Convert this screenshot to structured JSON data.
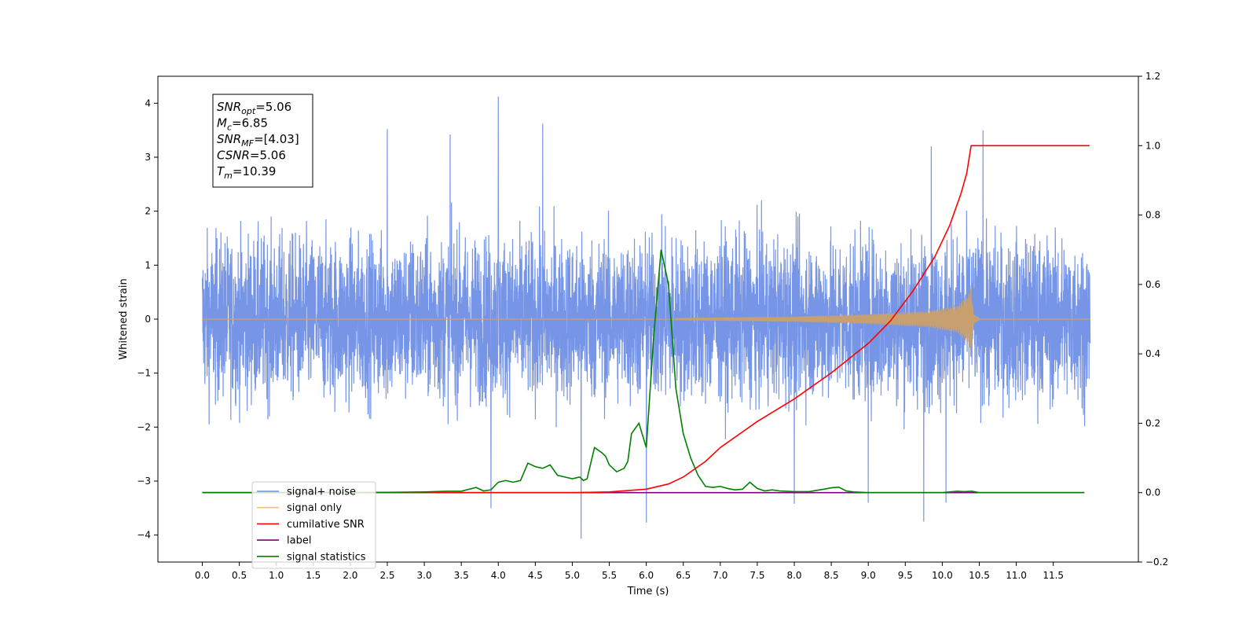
{
  "chart_data": {
    "type": "line",
    "xlabel": "Time (s)",
    "ylabel": "Whitened strain",
    "xlim": [
      -0.6,
      12.65
    ],
    "ylim": [
      -4.5,
      4.5
    ],
    "y2lim": [
      -0.2,
      1.2
    ],
    "x_ticks": [
      "0.0",
      "0.5",
      "1.0",
      "1.5",
      "2.0",
      "2.5",
      "3.0",
      "3.5",
      "4.0",
      "4.5",
      "5.0",
      "5.5",
      "6.0",
      "6.5",
      "7.0",
      "7.5",
      "8.0",
      "8.5",
      "9.0",
      "9.5",
      "10.0",
      "10.5",
      "11.0",
      "11.5"
    ],
    "y_ticks": [
      "4",
      "3",
      "2",
      "1",
      "0",
      "−1",
      "−2",
      "−3",
      "−4"
    ],
    "y2_ticks": [
      "1.2",
      "1.0",
      "0.8",
      "0.6",
      "0.4",
      "0.2",
      "0.0",
      "−0.2"
    ],
    "grid": false,
    "legend_position": "lower-left",
    "annotation": {
      "lines": [
        {
          "var": "SNR",
          "sub": "opt",
          "value": "=5.06"
        },
        {
          "var": "M",
          "sub": "c",
          "value": "=6.85"
        },
        {
          "var": "SNR",
          "sub": "MF",
          "value": "=[4.03]"
        },
        {
          "var": "CSNR",
          "sub": "",
          "value": "=5.06"
        },
        {
          "var": "T",
          "sub": "m",
          "value": "=10.39"
        }
      ]
    },
    "legend": [
      {
        "label": "signal+ noise",
        "color": "#6f8fe6"
      },
      {
        "label": "signal only",
        "color": "#ffc15a"
      },
      {
        "label": "cumilative SNR",
        "color": "#ff0000"
      },
      {
        "label": "label",
        "color": "#800080"
      },
      {
        "label": "signal statistics",
        "color": "#008000"
      }
    ],
    "series": [
      {
        "name": "signal+ noise",
        "axis": "left",
        "color": "#6f8fe6",
        "x_range": [
          0.0,
          12.0
        ],
        "typical_range": [
          -2.2,
          2.2
        ],
        "peaks": [
          {
            "x": 4.0,
            "y": 4.12
          },
          {
            "x": 2.5,
            "y": 3.52
          },
          {
            "x": 3.35,
            "y": 3.42
          },
          {
            "x": 4.6,
            "y": 3.62
          },
          {
            "x": 10.55,
            "y": 3.5
          },
          {
            "x": 9.85,
            "y": 3.2
          },
          {
            "x": 5.12,
            "y": -4.07
          },
          {
            "x": 6.0,
            "y": -3.77
          },
          {
            "x": 9.75,
            "y": -3.75
          },
          {
            "x": 3.9,
            "y": -3.5
          },
          {
            "x": 9.0,
            "y": -3.4
          },
          {
            "x": 10.05,
            "y": -3.4
          },
          {
            "x": 8.0,
            "y": -3.42
          }
        ]
      },
      {
        "name": "signal only",
        "axis": "left",
        "color": "#ffc15a",
        "x_range": [
          0.0,
          12.0
        ],
        "chirp_start": 6.4,
        "merger_time": 10.39,
        "envelope": [
          [
            6.4,
            0.02
          ],
          [
            8.0,
            0.05
          ],
          [
            9.0,
            0.09
          ],
          [
            9.8,
            0.15
          ],
          [
            10.2,
            0.25
          ],
          [
            10.35,
            0.45
          ],
          [
            10.39,
            0.65
          ],
          [
            10.42,
            0.1
          ],
          [
            10.5,
            0.02
          ]
        ]
      },
      {
        "name": "cumilative SNR",
        "axis": "right",
        "color": "#ff0000",
        "x": [
          0.0,
          5.0,
          5.5,
          6.0,
          6.3,
          6.5,
          6.8,
          7.0,
          7.5,
          8.0,
          8.5,
          9.0,
          9.3,
          9.6,
          9.9,
          10.1,
          10.25,
          10.33,
          10.39,
          10.5,
          11.0,
          11.5,
          11.99
        ],
        "values": [
          0.0,
          0.0,
          0.002,
          0.01,
          0.025,
          0.045,
          0.09,
          0.13,
          0.205,
          0.27,
          0.345,
          0.43,
          0.495,
          0.58,
          0.68,
          0.77,
          0.86,
          0.92,
          1.0,
          1.0,
          1.0,
          1.0,
          1.0
        ]
      },
      {
        "name": "label",
        "axis": "right",
        "color": "#800080",
        "x": [
          0.0,
          11.92
        ],
        "values": [
          0.0,
          0.0
        ]
      },
      {
        "name": "signal statistics",
        "axis": "right",
        "color": "#008000",
        "x": [
          0.0,
          2.0,
          3.0,
          3.3,
          3.5,
          3.7,
          3.8,
          3.9,
          4.0,
          4.1,
          4.2,
          4.3,
          4.4,
          4.5,
          4.6,
          4.7,
          4.8,
          4.9,
          5.0,
          5.1,
          5.15,
          5.2,
          5.3,
          5.4,
          5.45,
          5.5,
          5.6,
          5.7,
          5.75,
          5.8,
          5.9,
          6.0,
          6.1,
          6.2,
          6.25,
          6.3,
          6.4,
          6.5,
          6.6,
          6.7,
          6.8,
          6.9,
          7.0,
          7.1,
          7.2,
          7.3,
          7.4,
          7.5,
          7.6,
          7.7,
          7.8,
          8.0,
          8.2,
          8.4,
          8.5,
          8.6,
          8.7,
          8.8,
          9.0,
          9.5,
          10.0,
          10.2,
          10.3,
          10.4,
          10.5,
          11.0,
          11.5,
          11.92
        ],
        "values": [
          0.0,
          0.0,
          0.002,
          0.004,
          0.004,
          0.015,
          0.005,
          0.008,
          0.03,
          0.035,
          0.03,
          0.035,
          0.085,
          0.075,
          0.07,
          0.08,
          0.05,
          0.045,
          0.04,
          0.045,
          0.035,
          0.04,
          0.13,
          0.115,
          0.105,
          0.08,
          0.06,
          0.07,
          0.09,
          0.17,
          0.2,
          0.13,
          0.45,
          0.7,
          0.65,
          0.6,
          0.3,
          0.17,
          0.1,
          0.05,
          0.018,
          0.015,
          0.018,
          0.012,
          0.008,
          0.01,
          0.03,
          0.012,
          0.005,
          0.008,
          0.005,
          0.003,
          0.003,
          0.01,
          0.014,
          0.016,
          0.005,
          0.002,
          0.0,
          0.0,
          0.0,
          0.004,
          0.003,
          0.004,
          0.0,
          0.0,
          0.0,
          0.0
        ]
      }
    ]
  }
}
